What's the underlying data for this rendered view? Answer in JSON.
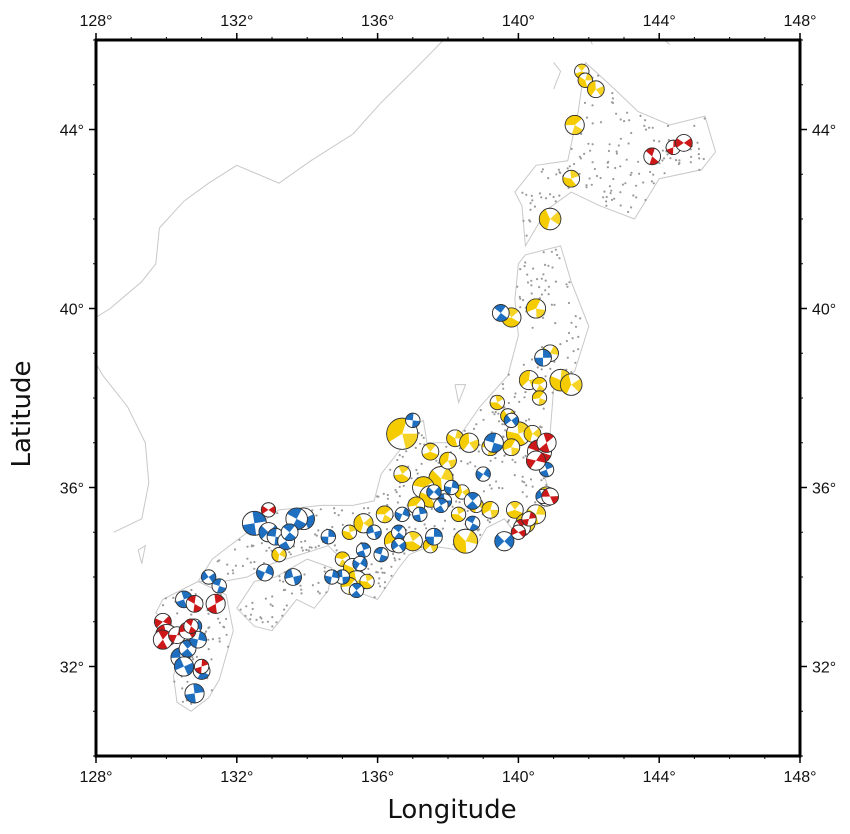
{
  "map": {
    "xlabel": "Longitude",
    "ylabel": "Latitude",
    "lon_range": [
      128,
      148
    ],
    "lat_range": [
      30,
      46
    ],
    "lon_ticks": [
      "128°",
      "132°",
      "136°",
      "140°",
      "144°",
      "148°"
    ],
    "lat_ticks": [
      "32°",
      "36°",
      "40°",
      "44°"
    ],
    "colors": {
      "frame": "#000000",
      "coastline": "#c8c8c8",
      "station": "#9a9a9a",
      "reverse_fault": "#f5cc00",
      "strike_slip": "#1f6fc0",
      "normal_fault": "#cc1818"
    }
  },
  "chart_data": {
    "type": "scatter",
    "xlabel": "Longitude",
    "ylabel": "Latitude",
    "xlim": [
      128,
      148
    ],
    "ylim": [
      30,
      46
    ],
    "series": [
      {
        "mechanism": "reverse",
        "color": "#f5cc00",
        "points": [
          [
            141.8,
            45.3,
            0.6
          ],
          [
            141.9,
            45.1,
            0.6
          ],
          [
            142.2,
            44.9,
            0.7
          ],
          [
            141.6,
            44.1,
            0.8
          ],
          [
            141.5,
            42.9,
            0.7
          ],
          [
            140.9,
            42.0,
            0.9
          ],
          [
            140.5,
            40.0,
            0.8
          ],
          [
            139.8,
            39.8,
            0.8
          ],
          [
            140.9,
            39.0,
            0.7
          ],
          [
            140.3,
            38.4,
            0.8
          ],
          [
            140.6,
            38.3,
            0.6
          ],
          [
            141.2,
            38.4,
            0.9
          ],
          [
            141.5,
            38.3,
            0.9
          ],
          [
            140.6,
            38.0,
            0.6
          ],
          [
            139.4,
            37.9,
            0.6
          ],
          [
            139.7,
            37.6,
            0.6
          ],
          [
            136.7,
            37.2,
            1.3
          ],
          [
            137.5,
            36.8,
            0.7
          ],
          [
            138.2,
            37.1,
            0.7
          ],
          [
            138.6,
            37.0,
            0.8
          ],
          [
            139.2,
            36.9,
            0.7
          ],
          [
            140.0,
            37.2,
            1.0
          ],
          [
            140.4,
            37.2,
            0.7
          ],
          [
            139.8,
            36.9,
            0.7
          ],
          [
            136.7,
            36.3,
            0.7
          ],
          [
            137.8,
            36.2,
            1.0
          ],
          [
            138.0,
            36.6,
            0.7
          ],
          [
            137.3,
            36.0,
            0.9
          ],
          [
            137.5,
            35.8,
            0.9
          ],
          [
            138.4,
            35.9,
            0.6
          ],
          [
            137.1,
            35.6,
            0.7
          ],
          [
            138.3,
            35.4,
            0.6
          ],
          [
            138.8,
            35.6,
            0.6
          ],
          [
            139.2,
            35.5,
            0.7
          ],
          [
            139.9,
            35.5,
            0.7
          ],
          [
            140.5,
            35.4,
            0.8
          ],
          [
            140.8,
            35.8,
            0.8
          ],
          [
            136.2,
            35.4,
            0.7
          ],
          [
            135.2,
            35.0,
            0.6
          ],
          [
            135.6,
            35.2,
            0.8
          ],
          [
            136.5,
            34.8,
            0.9
          ],
          [
            137.0,
            34.8,
            0.8
          ],
          [
            138.5,
            34.8,
            1.0
          ],
          [
            137.5,
            34.7,
            0.6
          ],
          [
            135.0,
            34.4,
            0.6
          ],
          [
            135.3,
            34.2,
            0.8
          ],
          [
            135.4,
            33.9,
            0.9
          ],
          [
            135.2,
            33.8,
            0.7
          ],
          [
            135.7,
            33.9,
            0.6
          ],
          [
            133.2,
            34.5,
            0.6
          ],
          [
            140.2,
            35.2,
            0.8
          ]
        ]
      },
      {
        "mechanism": "strike-slip",
        "color": "#1f6fc0",
        "points": [
          [
            139.5,
            39.9,
            0.7
          ],
          [
            140.7,
            38.9,
            0.7
          ],
          [
            139.8,
            37.5,
            0.6
          ],
          [
            139.3,
            37.0,
            0.8
          ],
          [
            140.8,
            36.4,
            0.6
          ],
          [
            139.0,
            36.3,
            0.6
          ],
          [
            137.9,
            35.7,
            0.6
          ],
          [
            138.7,
            35.7,
            0.7
          ],
          [
            138.1,
            36.0,
            0.6
          ],
          [
            140.7,
            35.8,
            0.6
          ],
          [
            138.7,
            35.2,
            0.6
          ],
          [
            137.2,
            35.4,
            0.6
          ],
          [
            137.6,
            35.9,
            0.6
          ],
          [
            137.0,
            37.5,
            0.6
          ],
          [
            137.8,
            35.6,
            0.6
          ],
          [
            136.7,
            35.4,
            0.6
          ],
          [
            135.9,
            35.0,
            0.6
          ],
          [
            136.6,
            35.0,
            0.6
          ],
          [
            137.6,
            34.9,
            0.7
          ],
          [
            136.6,
            34.7,
            0.6
          ],
          [
            136.1,
            34.5,
            0.6
          ],
          [
            135.6,
            34.6,
            0.6
          ],
          [
            135.5,
            34.3,
            0.6
          ],
          [
            135.0,
            34.0,
            0.6
          ],
          [
            135.4,
            33.7,
            0.6
          ],
          [
            134.7,
            34.0,
            0.6
          ],
          [
            133.9,
            35.3,
            0.9
          ],
          [
            133.7,
            35.3,
            0.9
          ],
          [
            132.5,
            35.2,
            1.0
          ],
          [
            132.9,
            35.0,
            0.8
          ],
          [
            133.1,
            34.9,
            0.7
          ],
          [
            133.4,
            34.8,
            0.7
          ],
          [
            132.8,
            34.1,
            0.7
          ],
          [
            133.6,
            34.0,
            0.7
          ],
          [
            133.5,
            35.0,
            0.7
          ],
          [
            134.6,
            34.9,
            0.6
          ],
          [
            131.2,
            34.0,
            0.6
          ],
          [
            131.5,
            33.8,
            0.6
          ],
          [
            130.5,
            33.5,
            0.7
          ],
          [
            130.8,
            32.9,
            0.6
          ],
          [
            130.4,
            32.2,
            0.8
          ],
          [
            130.6,
            32.4,
            0.7
          ],
          [
            130.9,
            32.6,
            0.7
          ],
          [
            130.5,
            32.0,
            0.8
          ],
          [
            131.0,
            31.9,
            0.7
          ],
          [
            130.8,
            31.4,
            0.8
          ],
          [
            139.6,
            34.8,
            0.8
          ]
        ]
      },
      {
        "mechanism": "normal",
        "color": "#cc1818",
        "points": [
          [
            143.8,
            43.4,
            0.7
          ],
          [
            144.4,
            43.6,
            0.6
          ],
          [
            144.7,
            43.7,
            0.7
          ],
          [
            140.6,
            36.8,
            1.0
          ],
          [
            140.8,
            37.0,
            0.8
          ],
          [
            140.5,
            36.6,
            0.8
          ],
          [
            140.9,
            35.8,
            0.7
          ],
          [
            140.1,
            35.1,
            0.7
          ],
          [
            140.3,
            35.3,
            0.6
          ],
          [
            140.0,
            35.0,
            0.6
          ],
          [
            130.8,
            33.4,
            0.7
          ],
          [
            131.4,
            33.4,
            0.8
          ],
          [
            129.9,
            33.0,
            0.7
          ],
          [
            130.0,
            32.7,
            0.9
          ],
          [
            129.9,
            32.6,
            0.8
          ],
          [
            130.3,
            32.7,
            0.7
          ],
          [
            130.6,
            32.8,
            0.7
          ],
          [
            130.7,
            32.9,
            0.6
          ],
          [
            131.0,
            32.0,
            0.6
          ],
          [
            132.9,
            35.5,
            0.6
          ]
        ]
      }
    ]
  }
}
